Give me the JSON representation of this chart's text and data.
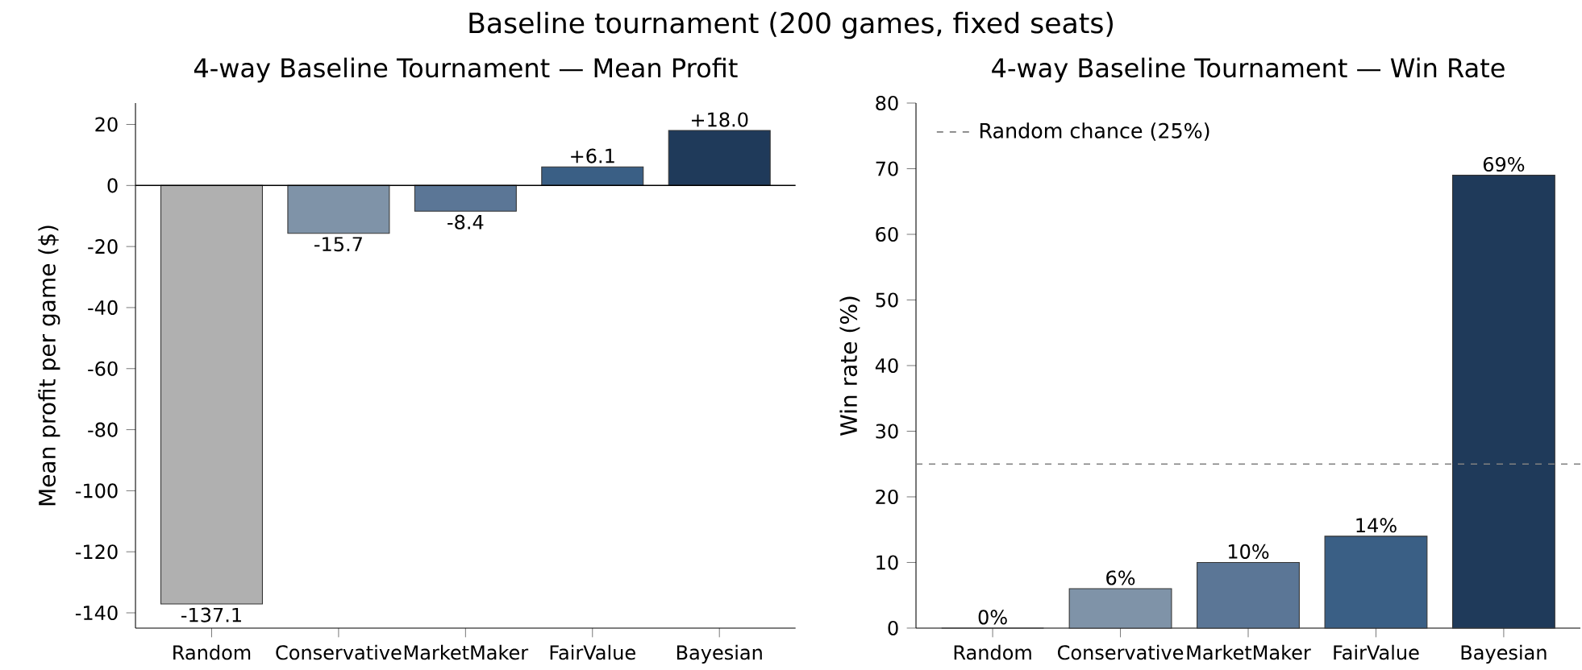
{
  "chart_data": [
    {
      "type": "bar",
      "title": "4-way Baseline Tournament — Mean Profit",
      "ylabel": "Mean profit per game ($)",
      "annotations": [
        "Baseline tournament (200 games, fixed seats)"
      ],
      "categories": [
        "Random",
        "Conservative",
        "MarketMaker",
        "FairValue",
        "Bayesian"
      ],
      "values": [
        -137.1,
        -15.7,
        -8.4,
        6.1,
        18.0
      ],
      "value_labels": [
        "-137.1",
        "-15.7",
        "-8.4",
        "+6.1",
        "+18.0"
      ],
      "colors": [
        "#b0b0b0",
        "#7f93a8",
        "#5b7696",
        "#3a5f85",
        "#1f3a5a"
      ],
      "ylim": [
        -145,
        27
      ],
      "yticks": [
        -140,
        -120,
        -100,
        -80,
        -60,
        -40,
        -20,
        0,
        20
      ],
      "ref_lines": [
        {
          "axis": "y",
          "value": 0,
          "color": "#000000",
          "line_style": "solid"
        }
      ],
      "grid": false,
      "legend": false
    },
    {
      "type": "bar",
      "title": "4-way Baseline Tournament — Win Rate",
      "ylabel": "Win rate (%)",
      "categories": [
        "Random",
        "Conservative",
        "MarketMaker",
        "FairValue",
        "Bayesian"
      ],
      "values": [
        0,
        6,
        10,
        14,
        69
      ],
      "value_labels": [
        "0%",
        "6%",
        "10%",
        "14%",
        "69%"
      ],
      "colors": [
        "#b0b0b0",
        "#7f93a8",
        "#5b7696",
        "#3a5f85",
        "#1f3a5a"
      ],
      "ylim": [
        0,
        80
      ],
      "yticks": [
        0,
        10,
        20,
        30,
        40,
        50,
        60,
        70,
        80
      ],
      "ref_lines": [
        {
          "axis": "y",
          "value": 25,
          "label": "Random chance (25%)",
          "color": "#808080",
          "line_style": "dashed"
        }
      ],
      "grid": false,
      "legend": "top left"
    }
  ]
}
